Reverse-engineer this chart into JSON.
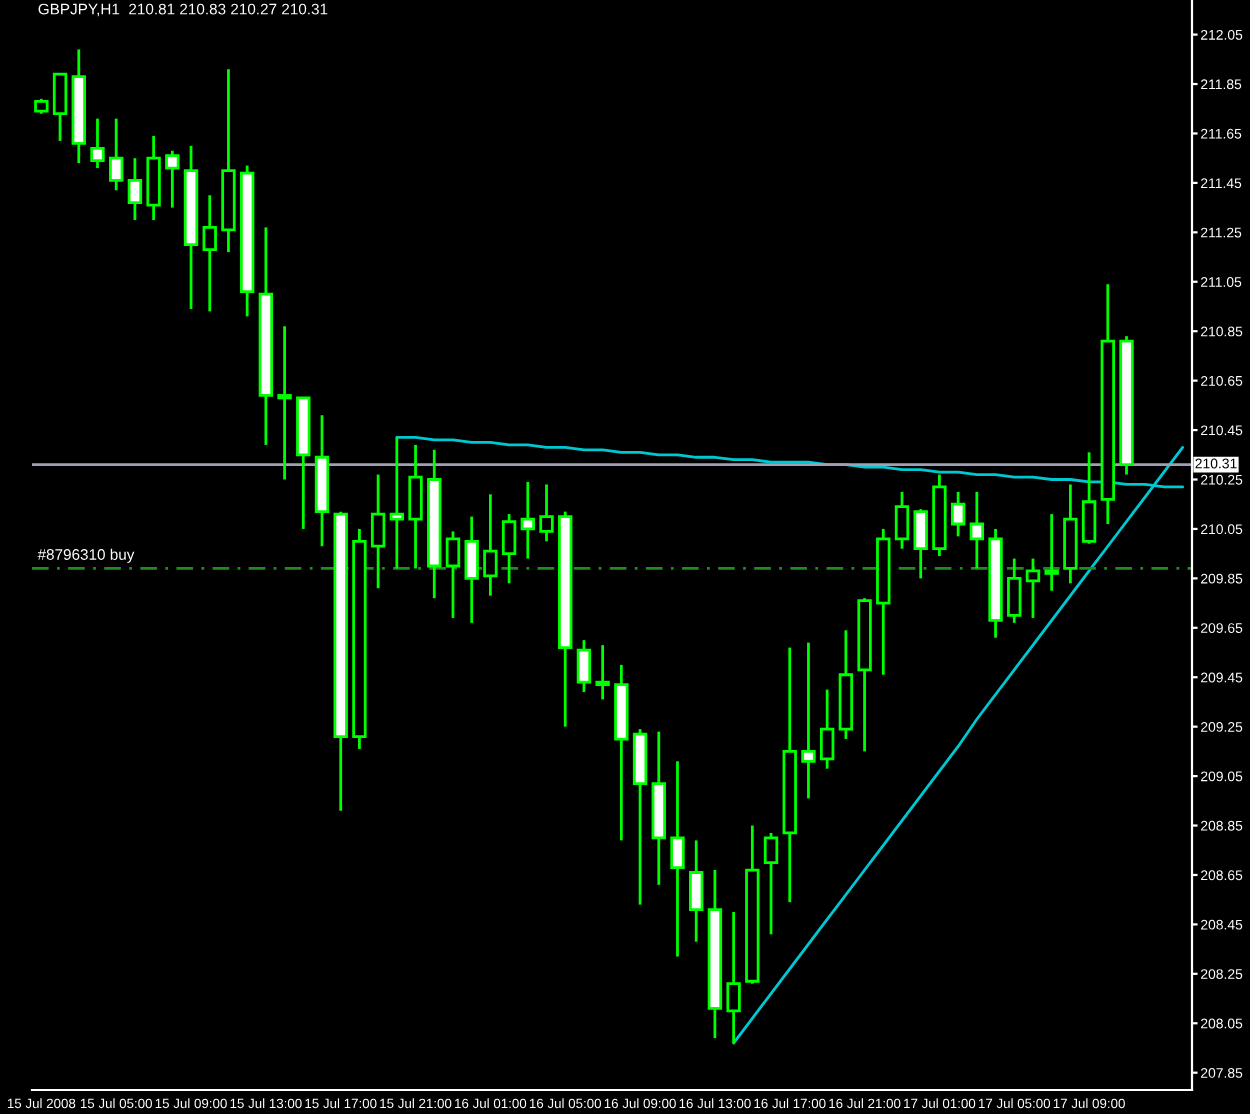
{
  "chart_data": {
    "type": "candlestick",
    "title": "GBPJPY,H1  210.81 210.83 210.27 210.31",
    "categories": [
      "15 Jul 2008",
      null,
      null,
      null,
      "15 Jul 05:00",
      null,
      null,
      null,
      "15 Jul 09:00",
      null,
      null,
      null,
      "15 Jul 13:00",
      null,
      null,
      null,
      "15 Jul 17:00",
      null,
      null,
      null,
      "15 Jul 21:00",
      null,
      null,
      null,
      "16 Jul 01:00",
      null,
      null,
      null,
      "16 Jul 05:00",
      null,
      null,
      null,
      "16 Jul 09:00",
      null,
      null,
      null,
      "16 Jul 13:00",
      null,
      null,
      null,
      "16 Jul 17:00",
      null,
      null,
      null,
      "16 Jul 21:00",
      null,
      null,
      null,
      "17 Jul 01:00",
      null,
      null,
      null,
      "17 Jul 05:00",
      null,
      null,
      null,
      "17 Jul 09:00",
      null,
      null,
      null,
      null,
      null
    ],
    "ohlc": [
      [
        211.74,
        211.79,
        211.73,
        211.78
      ],
      [
        211.73,
        211.89,
        211.62,
        211.89
      ],
      [
        211.88,
        211.99,
        211.53,
        211.61
      ],
      [
        211.59,
        211.71,
        211.51,
        211.54
      ],
      [
        211.55,
        211.71,
        211.42,
        211.46
      ],
      [
        211.46,
        211.55,
        211.3,
        211.37
      ],
      [
        211.36,
        211.64,
        211.3,
        211.55
      ],
      [
        211.56,
        211.58,
        211.35,
        211.51
      ],
      [
        211.5,
        211.6,
        210.94,
        211.2
      ],
      [
        211.18,
        211.4,
        210.93,
        211.27
      ],
      [
        211.26,
        211.91,
        211.17,
        211.5
      ],
      [
        211.49,
        211.52,
        210.91,
        211.01
      ],
      [
        211.0,
        211.27,
        210.39,
        210.59
      ],
      [
        210.58,
        210.87,
        210.25,
        210.59
      ],
      [
        210.58,
        210.58,
        210.05,
        210.35
      ],
      [
        210.34,
        210.51,
        209.98,
        210.12
      ],
      [
        210.11,
        210.12,
        208.91,
        209.21
      ],
      [
        209.21,
        210.05,
        209.16,
        210.0
      ],
      [
        209.98,
        210.27,
        209.81,
        210.11
      ],
      [
        210.11,
        210.42,
        209.89,
        210.09
      ],
      [
        210.09,
        210.39,
        209.89,
        210.26
      ],
      [
        210.25,
        210.37,
        209.77,
        209.9
      ],
      [
        209.9,
        210.04,
        209.69,
        210.01
      ],
      [
        210.0,
        210.1,
        209.67,
        209.85
      ],
      [
        209.86,
        210.19,
        209.78,
        209.96
      ],
      [
        209.95,
        210.11,
        209.83,
        210.08
      ],
      [
        210.09,
        210.24,
        209.93,
        210.05
      ],
      [
        210.04,
        210.23,
        210.0,
        210.1
      ],
      [
        210.1,
        210.12,
        209.25,
        209.57
      ],
      [
        209.56,
        209.6,
        209.39,
        209.43
      ],
      [
        209.43,
        209.58,
        209.36,
        209.42
      ],
      [
        209.42,
        209.5,
        208.79,
        209.2
      ],
      [
        209.22,
        209.24,
        208.53,
        209.02
      ],
      [
        209.02,
        209.23,
        208.61,
        208.8
      ],
      [
        208.8,
        209.11,
        208.32,
        208.68
      ],
      [
        208.66,
        208.79,
        208.38,
        208.51
      ],
      [
        208.51,
        208.67,
        207.99,
        208.11
      ],
      [
        208.1,
        208.5,
        207.97,
        208.21
      ],
      [
        208.22,
        208.85,
        208.21,
        208.67
      ],
      [
        208.7,
        208.82,
        208.41,
        208.8
      ],
      [
        208.82,
        209.57,
        208.54,
        209.15
      ],
      [
        209.15,
        209.59,
        208.96,
        209.11
      ],
      [
        209.12,
        209.4,
        209.08,
        209.24
      ],
      [
        209.24,
        209.64,
        209.2,
        209.46
      ],
      [
        209.48,
        209.77,
        209.15,
        209.76
      ],
      [
        209.75,
        210.05,
        209.46,
        210.01
      ],
      [
        210.01,
        210.2,
        209.97,
        210.14
      ],
      [
        210.12,
        210.13,
        209.85,
        209.97
      ],
      [
        209.97,
        210.27,
        209.94,
        210.22
      ],
      [
        210.15,
        210.2,
        210.02,
        210.07
      ],
      [
        210.07,
        210.2,
        209.89,
        210.01
      ],
      [
        210.01,
        210.05,
        209.61,
        209.68
      ],
      [
        209.7,
        209.93,
        209.67,
        209.85
      ],
      [
        209.84,
        209.93,
        209.69,
        209.88
      ],
      [
        209.87,
        210.11,
        209.8,
        209.88
      ],
      [
        209.89,
        210.23,
        209.83,
        210.09
      ],
      [
        210.0,
        210.36,
        209.99,
        210.16
      ],
      [
        210.17,
        211.04,
        210.07,
        210.81
      ],
      [
        210.81,
        210.83,
        210.27,
        210.31
      ],
      null,
      null,
      null
    ],
    "series": [
      {
        "type": "line",
        "color": "#00c8d2",
        "values": [
          null,
          null,
          null,
          null,
          null,
          null,
          null,
          null,
          null,
          null,
          null,
          null,
          null,
          null,
          null,
          null,
          null,
          null,
          null,
          210.42,
          210.42,
          210.41,
          210.41,
          210.4,
          210.4,
          210.39,
          210.39,
          210.38,
          210.38,
          210.37,
          210.37,
          210.36,
          210.36,
          210.35,
          210.35,
          210.34,
          210.34,
          210.33,
          210.33,
          210.32,
          210.32,
          210.32,
          210.31,
          210.31,
          210.3,
          210.3,
          210.29,
          210.29,
          210.28,
          210.28,
          210.27,
          210.27,
          210.26,
          210.26,
          210.25,
          210.25,
          210.24,
          210.24,
          210.23,
          210.23,
          210.22,
          210.22
        ]
      },
      {
        "type": "line",
        "color": "#00c8d2",
        "values": [
          null,
          null,
          null,
          null,
          null,
          null,
          null,
          null,
          null,
          null,
          null,
          null,
          null,
          null,
          null,
          null,
          null,
          null,
          null,
          null,
          null,
          null,
          null,
          null,
          null,
          null,
          null,
          null,
          null,
          null,
          null,
          null,
          null,
          null,
          null,
          null,
          null,
          207.97,
          208.07,
          208.17,
          208.27,
          208.37,
          208.47,
          208.57,
          208.67,
          208.77,
          208.87,
          208.97,
          209.07,
          209.17,
          209.28,
          209.38,
          209.48,
          209.58,
          209.68,
          209.78,
          209.88,
          209.98,
          210.08,
          210.18,
          210.28,
          210.38
        ]
      }
    ],
    "ref_lines": [
      {
        "axis": "y",
        "value": 210.31,
        "label": "210.31",
        "color": "#a0a0b4",
        "line_style": "solid"
      },
      {
        "axis": "y",
        "value": 209.89,
        "label": "#8796310 buy",
        "color": "#1e8c1e",
        "line_style": "dashed"
      }
    ],
    "ylim": [
      207.78,
      212.19
    ],
    "yticks": [
      207.85,
      208.05,
      208.25,
      208.45,
      208.65,
      208.85,
      209.05,
      209.25,
      209.45,
      209.65,
      209.85,
      210.05,
      210.25,
      210.45,
      210.65,
      210.85,
      211.05,
      211.25,
      211.45,
      211.65,
      211.85,
      212.05
    ],
    "grid": false,
    "legend": false
  }
}
